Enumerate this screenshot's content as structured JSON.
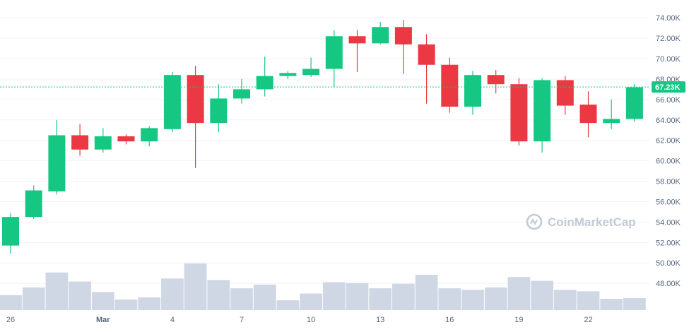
{
  "watermark": "CoinMarketCap",
  "current_price_label": "67.23K",
  "colors": {
    "up": "#16c784",
    "down": "#ea3943",
    "volume": "#cfd6e4",
    "grid": "#eff2f5",
    "price_line": "#16c784",
    "axis_text": "#58667e",
    "watermark": "#c3cad5"
  },
  "chart_data": {
    "type": "candlestick",
    "y_axis_position": "right",
    "ylim": [
      46900,
      74500
    ],
    "grid": true,
    "yticks": [
      "48.00K",
      "50.00K",
      "52.00K",
      "54.00K",
      "56.00K",
      "58.00K",
      "60.00K",
      "62.00K",
      "64.00K",
      "66.00K",
      "68.00K",
      "70.00K",
      "72.00K",
      "74.00K"
    ],
    "ytick_values": [
      48000,
      50000,
      52000,
      54000,
      56000,
      58000,
      60000,
      62000,
      64000,
      66000,
      68000,
      70000,
      72000,
      74000
    ],
    "xticks": [
      {
        "label": "26",
        "index": 0,
        "bold": false
      },
      {
        "label": "Mar",
        "index": 4,
        "bold": true
      },
      {
        "label": "4",
        "index": 7,
        "bold": false
      },
      {
        "label": "7",
        "index": 10,
        "bold": false
      },
      {
        "label": "10",
        "index": 13,
        "bold": false
      },
      {
        "label": "13",
        "index": 16,
        "bold": false
      },
      {
        "label": "16",
        "index": 19,
        "bold": false
      },
      {
        "label": "19",
        "index": 22,
        "bold": false
      },
      {
        "label": "22",
        "index": 25,
        "bold": false
      }
    ],
    "current_price": 67230,
    "candles": [
      {
        "o": 51700,
        "h": 54900,
        "l": 50900,
        "c": 54500
      },
      {
        "o": 54500,
        "h": 57600,
        "l": 54300,
        "c": 57100
      },
      {
        "o": 57000,
        "h": 64000,
        "l": 56700,
        "c": 62500
      },
      {
        "o": 62500,
        "h": 63600,
        "l": 60500,
        "c": 61100
      },
      {
        "o": 61100,
        "h": 63200,
        "l": 60800,
        "c": 62400
      },
      {
        "o": 62400,
        "h": 62600,
        "l": 61600,
        "c": 61900
      },
      {
        "o": 61900,
        "h": 63400,
        "l": 61400,
        "c": 63200
      },
      {
        "o": 63100,
        "h": 68700,
        "l": 62800,
        "c": 68400
      },
      {
        "o": 68400,
        "h": 69300,
        "l": 59300,
        "c": 63700
      },
      {
        "o": 63700,
        "h": 67500,
        "l": 62800,
        "c": 66100
      },
      {
        "o": 66100,
        "h": 68000,
        "l": 65600,
        "c": 67000
      },
      {
        "o": 67000,
        "h": 70200,
        "l": 66300,
        "c": 68300
      },
      {
        "o": 68300,
        "h": 68800,
        "l": 68000,
        "c": 68600
      },
      {
        "o": 68400,
        "h": 70100,
        "l": 68200,
        "c": 69000
      },
      {
        "o": 69000,
        "h": 72800,
        "l": 67200,
        "c": 72200
      },
      {
        "o": 72200,
        "h": 72800,
        "l": 68700,
        "c": 71500
      },
      {
        "o": 71500,
        "h": 73600,
        "l": 71400,
        "c": 73100
      },
      {
        "o": 73100,
        "h": 73800,
        "l": 68500,
        "c": 71400
      },
      {
        "o": 71400,
        "h": 72400,
        "l": 65600,
        "c": 69400
      },
      {
        "o": 69400,
        "h": 70100,
        "l": 64700,
        "c": 65300
      },
      {
        "o": 65300,
        "h": 68800,
        "l": 64500,
        "c": 68400
      },
      {
        "o": 68400,
        "h": 68900,
        "l": 66600,
        "c": 67500
      },
      {
        "o": 67500,
        "h": 68100,
        "l": 61500,
        "c": 61900
      },
      {
        "o": 61900,
        "h": 68100,
        "l": 60800,
        "c": 67900
      },
      {
        "o": 67900,
        "h": 68300,
        "l": 64500,
        "c": 65400
      },
      {
        "o": 65500,
        "h": 66800,
        "l": 62300,
        "c": 63700
      },
      {
        "o": 63700,
        "h": 66000,
        "l": 63100,
        "c": 64100
      },
      {
        "o": 64100,
        "h": 67500,
        "l": 63800,
        "c": 67200
      }
    ],
    "volume": [
      0.2,
      0.3,
      0.5,
      0.38,
      0.24,
      0.14,
      0.17,
      0.42,
      0.62,
      0.4,
      0.29,
      0.34,
      0.13,
      0.22,
      0.37,
      0.36,
      0.29,
      0.35,
      0.47,
      0.29,
      0.27,
      0.3,
      0.44,
      0.39,
      0.27,
      0.25,
      0.15,
      0.16
    ]
  }
}
